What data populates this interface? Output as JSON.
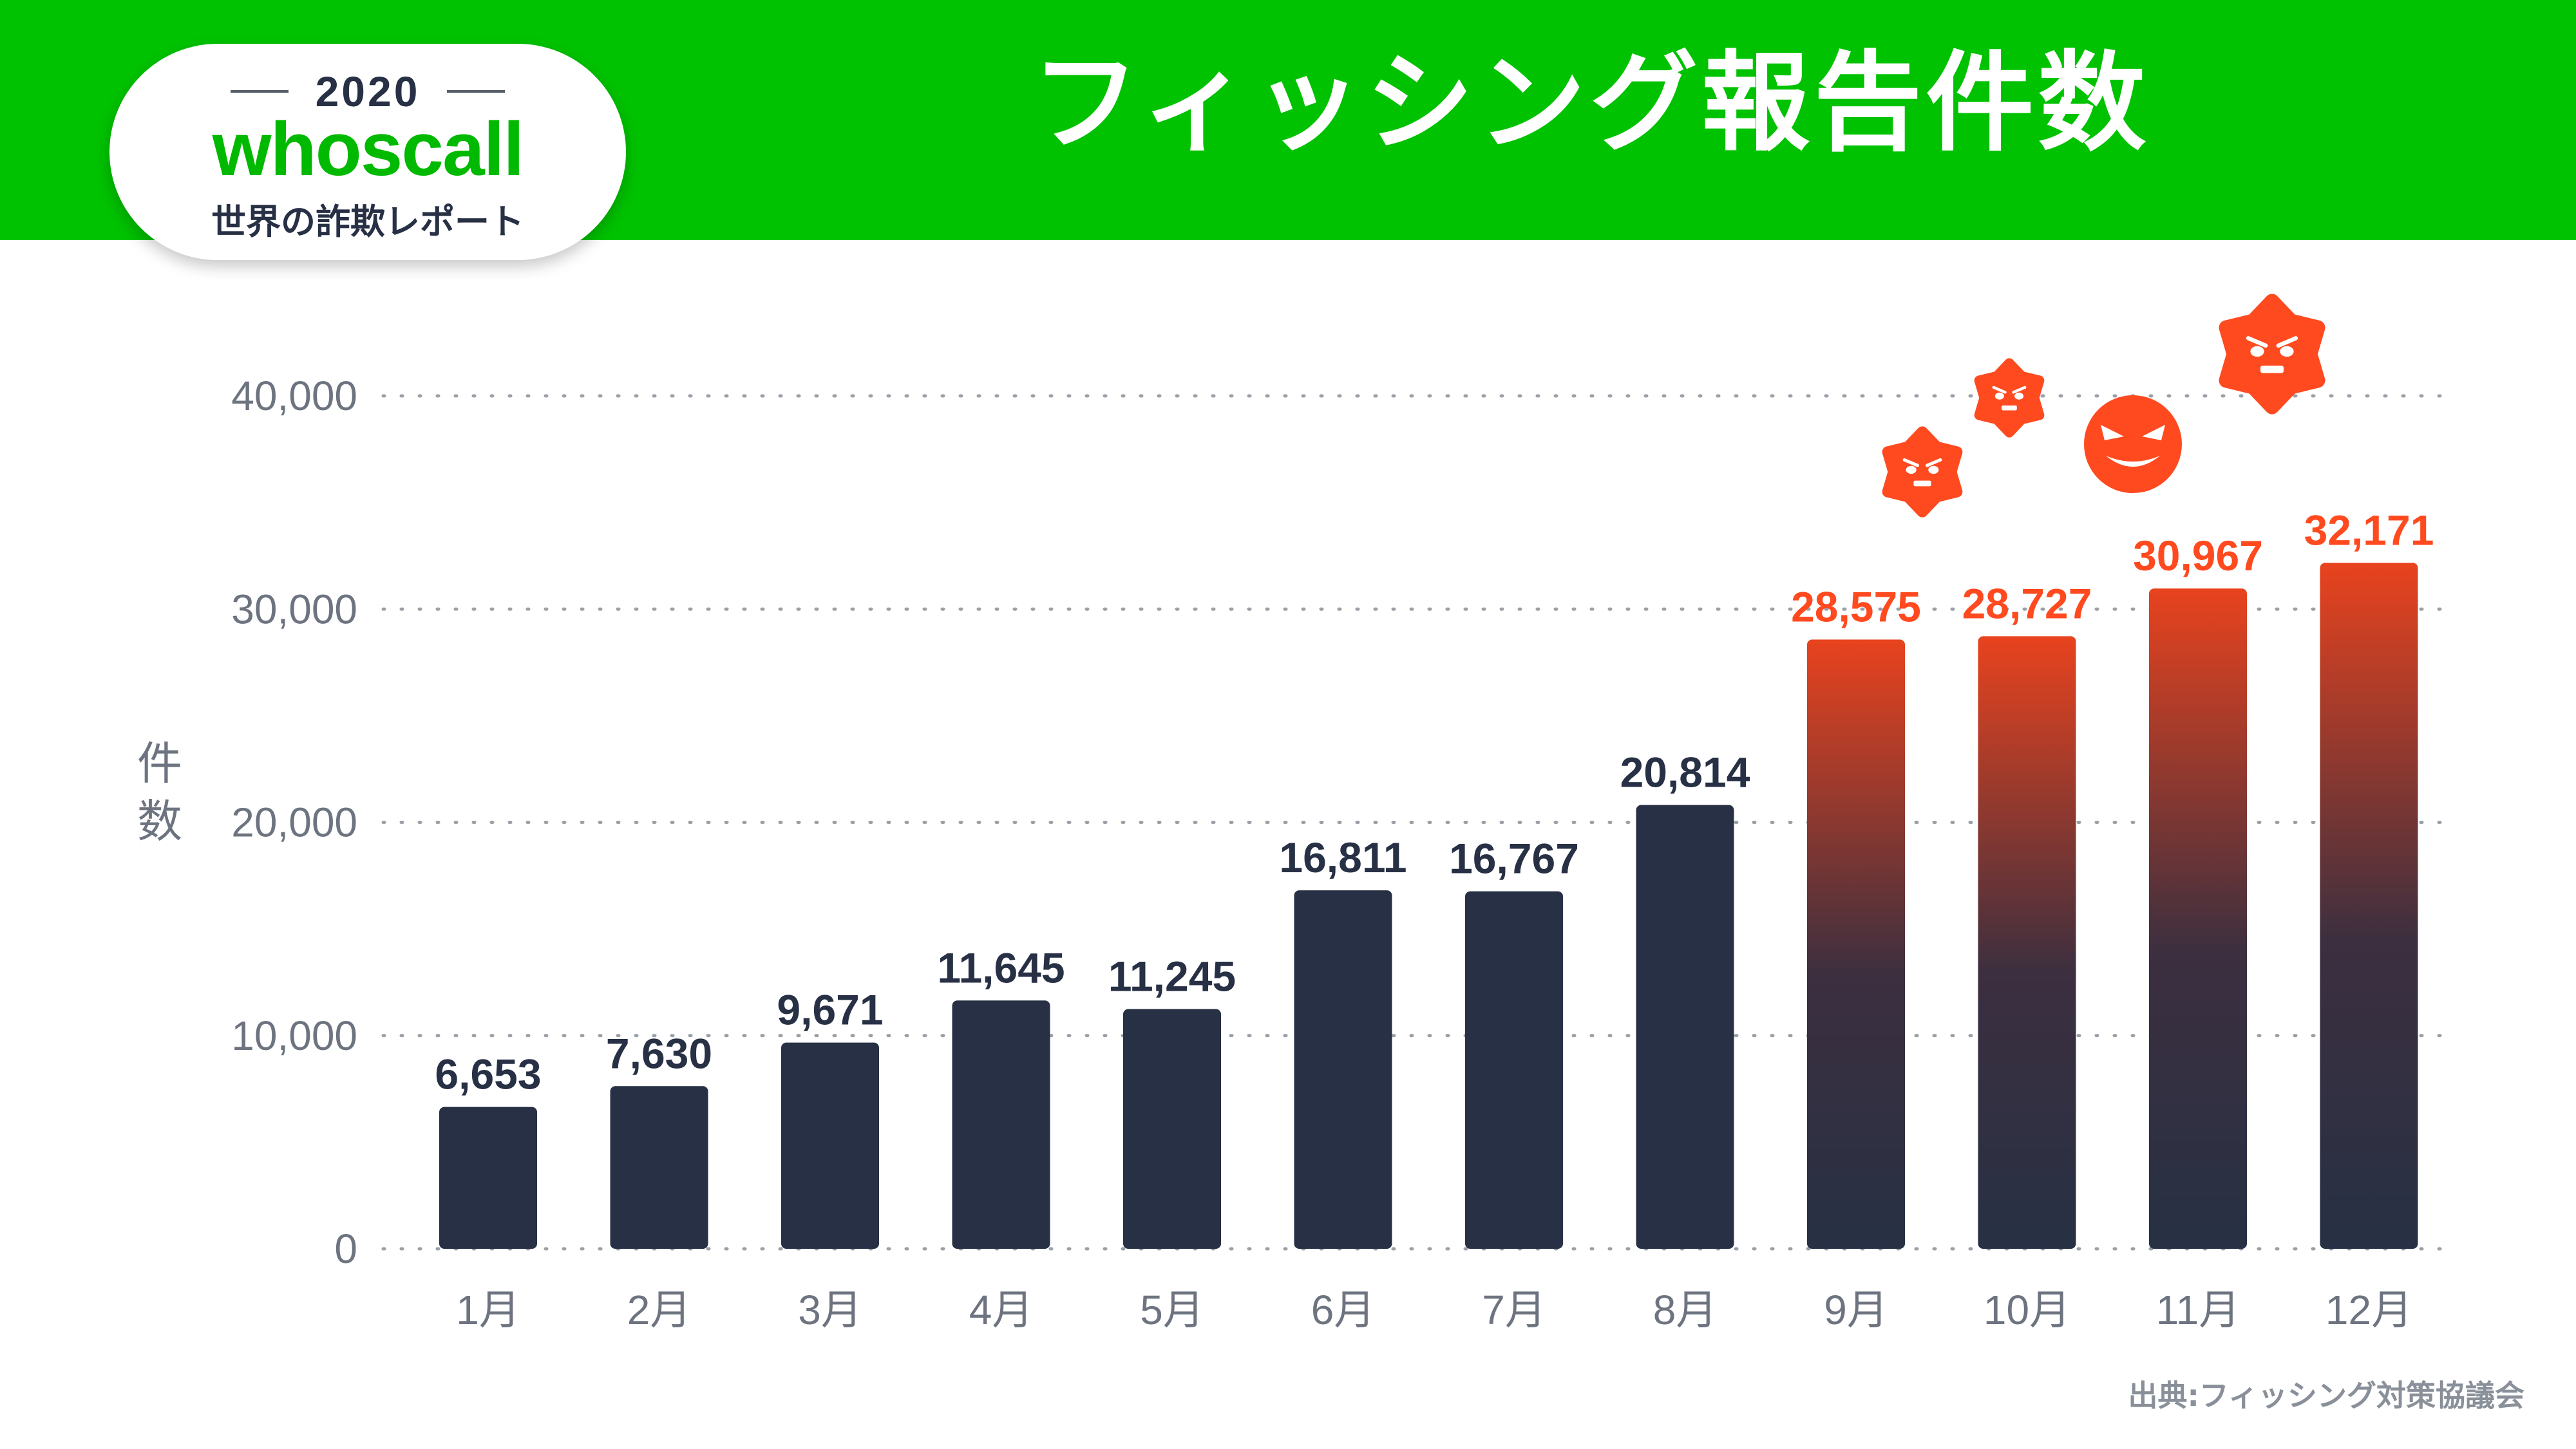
{
  "badge": {
    "year": "2020",
    "brand": "whoscall",
    "subtitle": "世界の詐欺レポート"
  },
  "title": "フィッシング報告件数",
  "source": "出典:フィッシング対策協議会",
  "colors": {
    "header_green": "#00c200",
    "brand_green": "#00b900",
    "bar_navy": "#273044",
    "highlight_red": "#ff4a1f",
    "axis_text": "#6d7480"
  },
  "icons": [
    "virus-icon",
    "virus-icon",
    "angry-face-icon",
    "virus-icon"
  ],
  "chart_data": {
    "type": "bar",
    "ylabel": "件数",
    "ylim": [
      0,
      40000
    ],
    "yticks": [
      0,
      10000,
      20000,
      30000,
      40000
    ],
    "ytick_labels": [
      "0",
      "10,000",
      "20,000",
      "30,000",
      "40,000"
    ],
    "grid": "dotted horizontal",
    "categories": [
      "1月",
      "2月",
      "3月",
      "4月",
      "5月",
      "6月",
      "7月",
      "8月",
      "9月",
      "10月",
      "11月",
      "12月"
    ],
    "values": [
      6653,
      7630,
      9671,
      11645,
      11245,
      16811,
      16767,
      20814,
      28575,
      28727,
      30967,
      32171
    ],
    "value_labels": [
      "6,653",
      "7,630",
      "9,671",
      "11,645",
      "11,245",
      "16,811",
      "16,767",
      "20,814",
      "28,575",
      "28,727",
      "30,967",
      "32,171"
    ],
    "highlighted": [
      false,
      false,
      false,
      false,
      false,
      false,
      false,
      false,
      true,
      true,
      true,
      true
    ]
  }
}
